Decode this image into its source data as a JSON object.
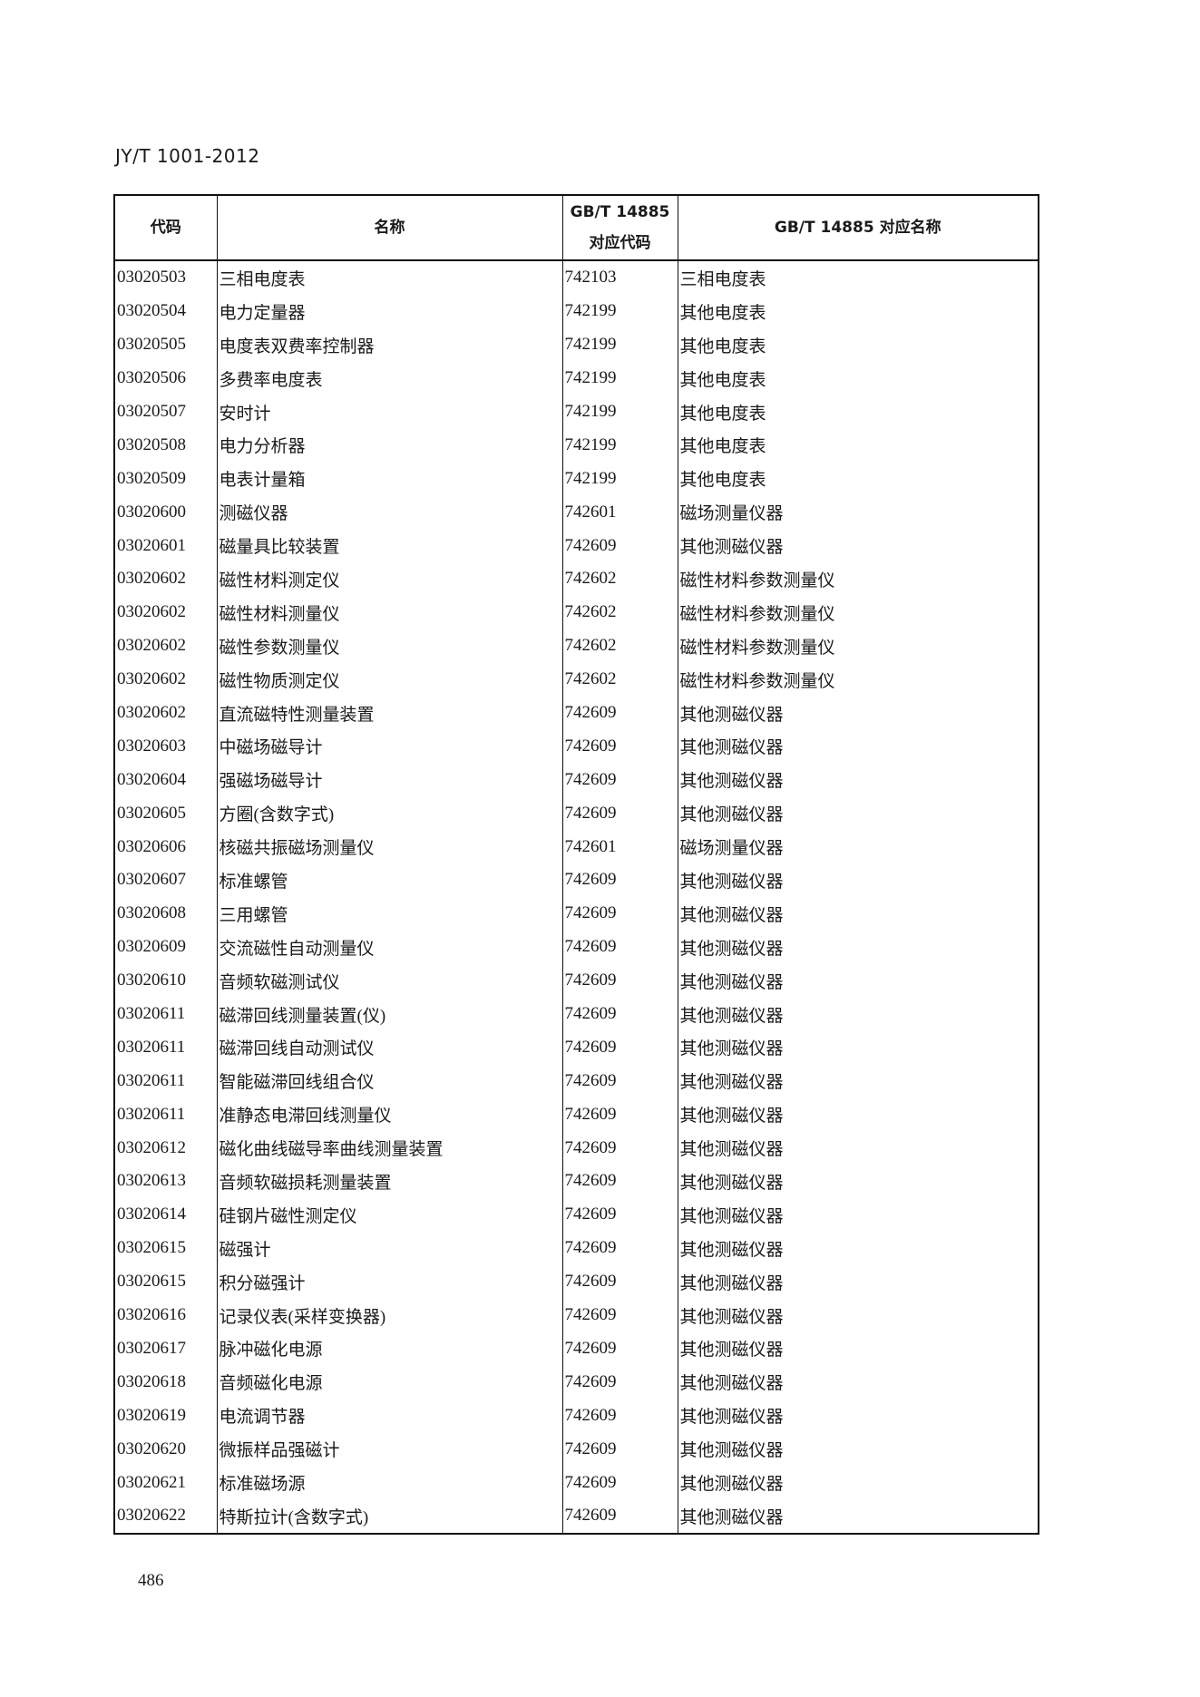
{
  "header": {
    "doc_id": "JY/T 1001-2012"
  },
  "table": {
    "columns": [
      "代码",
      "名称",
      "GB/T 14885 对应代码",
      "GB/T 14885 对应名称"
    ],
    "column_lines": [
      [
        "代码"
      ],
      [
        "名称"
      ],
      [
        "GB/T 14885",
        "对应代码"
      ],
      [
        "GB/T 14885 对应名称"
      ]
    ],
    "rows": [
      [
        "03020503",
        "三相电度表",
        "742103",
        "三相电度表"
      ],
      [
        "03020504",
        "电力定量器",
        "742199",
        "其他电度表"
      ],
      [
        "03020505",
        "电度表双费率控制器",
        "742199",
        "其他电度表"
      ],
      [
        "03020506",
        "多费率电度表",
        "742199",
        "其他电度表"
      ],
      [
        "03020507",
        "安时计",
        "742199",
        "其他电度表"
      ],
      [
        "03020508",
        "电力分析器",
        "742199",
        "其他电度表"
      ],
      [
        "03020509",
        "电表计量箱",
        "742199",
        "其他电度表"
      ],
      [
        "03020600",
        "测磁仪器",
        "742601",
        "磁场测量仪器"
      ],
      [
        "03020601",
        "磁量具比较装置",
        "742609",
        "其他测磁仪器"
      ],
      [
        "03020602",
        "磁性材料测定仪",
        "742602",
        "磁性材料参数测量仪"
      ],
      [
        "03020602",
        "磁性材料测量仪",
        "742602",
        "磁性材料参数测量仪"
      ],
      [
        "03020602",
        "磁性参数测量仪",
        "742602",
        "磁性材料参数测量仪"
      ],
      [
        "03020602",
        "磁性物质测定仪",
        "742602",
        "磁性材料参数测量仪"
      ],
      [
        "03020602",
        "直流磁特性测量装置",
        "742609",
        "其他测磁仪器"
      ],
      [
        "03020603",
        "中磁场磁导计",
        "742609",
        "其他测磁仪器"
      ],
      [
        "03020604",
        "强磁场磁导计",
        "742609",
        "其他测磁仪器"
      ],
      [
        "03020605",
        "方圈(含数字式)",
        "742609",
        "其他测磁仪器"
      ],
      [
        "03020606",
        "核磁共振磁场测量仪",
        "742601",
        "磁场测量仪器"
      ],
      [
        "03020607",
        "标准螺管",
        "742609",
        "其他测磁仪器"
      ],
      [
        "03020608",
        "三用螺管",
        "742609",
        "其他测磁仪器"
      ],
      [
        "03020609",
        "交流磁性自动测量仪",
        "742609",
        "其他测磁仪器"
      ],
      [
        "03020610",
        "音频软磁测试仪",
        "742609",
        "其他测磁仪器"
      ],
      [
        "03020611",
        "磁滞回线测量装置(仪)",
        "742609",
        "其他测磁仪器"
      ],
      [
        "03020611",
        "磁滞回线自动测试仪",
        "742609",
        "其他测磁仪器"
      ],
      [
        "03020611",
        "智能磁滞回线组合仪",
        "742609",
        "其他测磁仪器"
      ],
      [
        "03020611",
        "准静态电滞回线测量仪",
        "742609",
        "其他测磁仪器"
      ],
      [
        "03020612",
        "磁化曲线磁导率曲线测量装置",
        "742609",
        "其他测磁仪器"
      ],
      [
        "03020613",
        "音频软磁损耗测量装置",
        "742609",
        "其他测磁仪器"
      ],
      [
        "03020614",
        "硅钢片磁性测定仪",
        "742609",
        "其他测磁仪器"
      ],
      [
        "03020615",
        "磁强计",
        "742609",
        "其他测磁仪器"
      ],
      [
        "03020615",
        "积分磁强计",
        "742609",
        "其他测磁仪器"
      ],
      [
        "03020616",
        "记录仪表(采样变换器)",
        "742609",
        "其他测磁仪器"
      ],
      [
        "03020617",
        "脉冲磁化电源",
        "742609",
        "其他测磁仪器"
      ],
      [
        "03020618",
        "音频磁化电源",
        "742609",
        "其他测磁仪器"
      ],
      [
        "03020619",
        "电流调节器",
        "742609",
        "其他测磁仪器"
      ],
      [
        "03020620",
        "微振样品强磁计",
        "742609",
        "其他测磁仪器"
      ],
      [
        "03020621",
        "标准磁场源",
        "742609",
        "其他测磁仪器"
      ],
      [
        "03020622",
        "特斯拉计(含数字式)",
        "742609",
        "其他测磁仪器"
      ]
    ]
  },
  "footer": {
    "page_number": "486"
  }
}
